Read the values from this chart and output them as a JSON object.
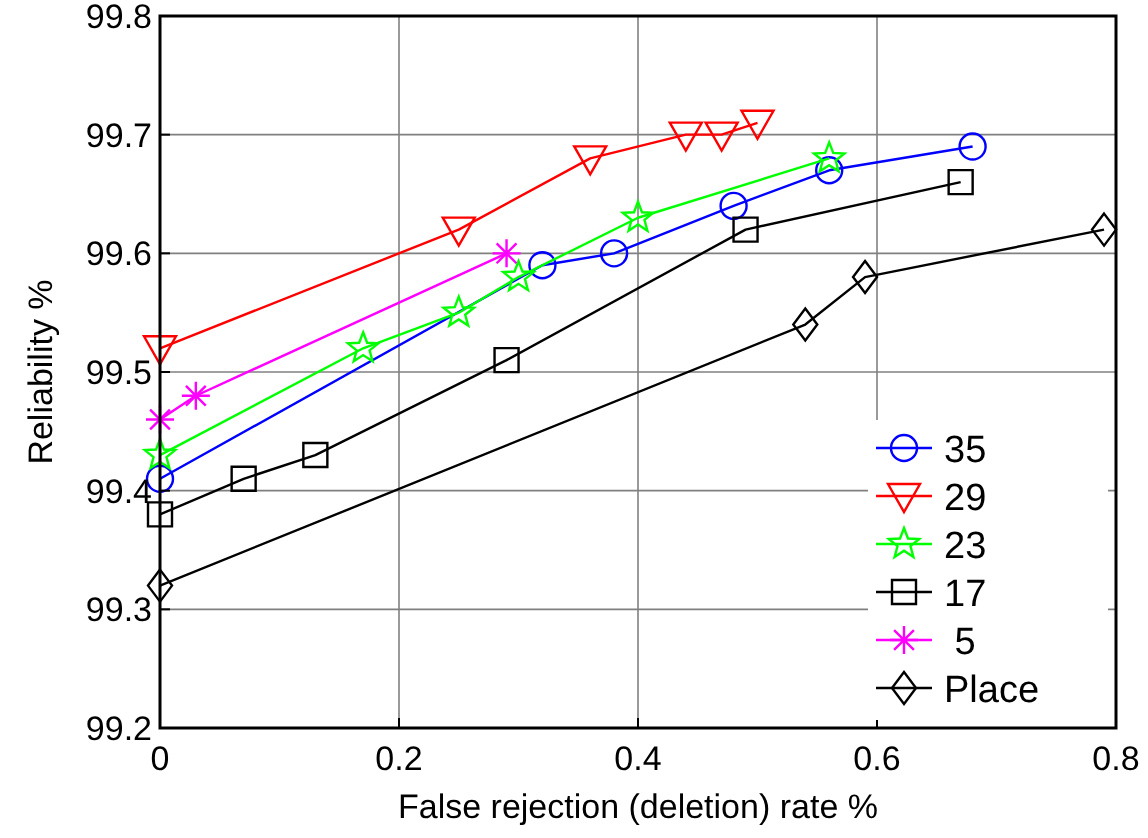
{
  "chart_data": {
    "type": "line",
    "xlabel": "False rejection (deletion) rate %",
    "ylabel": "Reliability %",
    "xlim": [
      0,
      0.8
    ],
    "xticks": [
      0,
      0.2,
      0.4,
      0.6,
      0.8
    ],
    "ylim": [
      99.2,
      99.8
    ],
    "yticks": [
      99.2,
      99.3,
      99.4,
      99.5,
      99.6,
      99.7,
      99.8
    ],
    "grid": true,
    "legend": "bottom right",
    "series": [
      {
        "name": "35",
        "color": "#0000ff",
        "marker": "circle",
        "x": [
          0,
          0.32,
          0.38,
          0.48,
          0.56,
          0.68
        ],
        "values": [
          99.41,
          99.59,
          99.6,
          99.64,
          99.67,
          99.69
        ]
      },
      {
        "name": "29",
        "color": "#ff0000",
        "marker": "triangle",
        "x": [
          0,
          0.25,
          0.36,
          0.44,
          0.47,
          0.5
        ],
        "values": [
          99.52,
          99.62,
          99.68,
          99.7,
          99.7,
          99.71
        ]
      },
      {
        "name": "23",
        "color": "#00ff00",
        "marker": "star",
        "x": [
          0,
          0.17,
          0.25,
          0.3,
          0.4,
          0.56
        ],
        "values": [
          99.43,
          99.52,
          99.55,
          99.58,
          99.63,
          99.68
        ]
      },
      {
        "name": "17",
        "color": "#000000",
        "marker": "square",
        "x": [
          0,
          0.07,
          0.13,
          0.29,
          0.49,
          0.67
        ],
        "values": [
          99.38,
          99.41,
          99.43,
          99.51,
          99.62,
          99.66
        ]
      },
      {
        "name": " 5",
        "color": "#ff00ff",
        "marker": "cross",
        "x": [
          0,
          0.03,
          0.29
        ],
        "values": [
          99.46,
          99.48,
          99.6
        ]
      },
      {
        "name": "Place",
        "color": "#000000",
        "marker": "diamond",
        "x": [
          0,
          0.54,
          0.59,
          0.79
        ],
        "values": [
          99.32,
          99.54,
          99.58,
          99.62
        ]
      }
    ]
  }
}
